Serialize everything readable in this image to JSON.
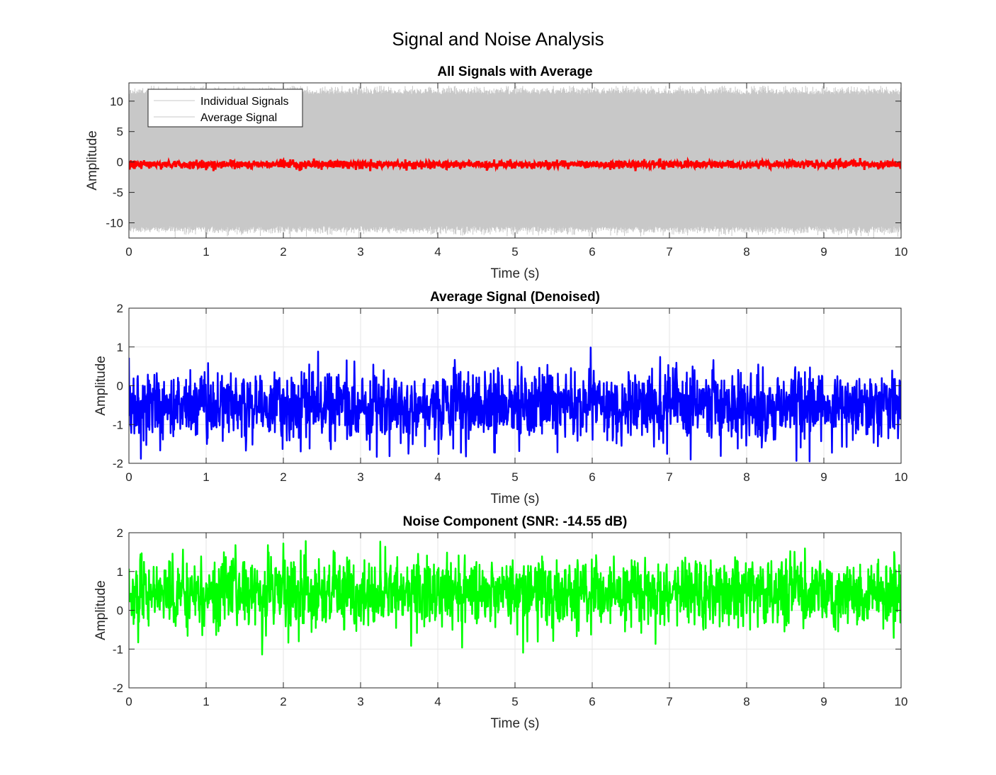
{
  "figure": {
    "title": "Signal and Noise Analysis"
  },
  "colors": {
    "individual": "#c8c8c8",
    "average": "#ff0000",
    "denoised": "#0000ff",
    "noise": "#00ff00",
    "axis": "#262626",
    "grid": "#e6e6e6"
  },
  "chart_data": [
    {
      "type": "line",
      "title": "All Signals with Average",
      "xlabel": "Time (s)",
      "ylabel": "Amplitude",
      "xlim": [
        0,
        10
      ],
      "ylim": [
        -12.5,
        13
      ],
      "xticks": [
        0,
        1,
        2,
        3,
        4,
        5,
        6,
        7,
        8,
        9,
        10
      ],
      "yticks": [
        -10,
        -5,
        0,
        5,
        10
      ],
      "grid": true,
      "legend": {
        "placement": "top-left",
        "entries": [
          "Individual Signals",
          "Average Signal"
        ]
      },
      "series": [
        {
          "name": "Individual Signals",
          "color": "#c8c8c8",
          "envelope": {
            "x": [
              0,
              10
            ],
            "mean": 0,
            "low": -10.5,
            "high": 11,
            "extreme_low": -12.5,
            "extreme_high": 12.5
          }
        },
        {
          "name": "Average Signal",
          "color": "#ff0000",
          "x_range": [
            0,
            10
          ],
          "approx_mean": -0.4,
          "approx_range": [
            -1.5,
            1
          ]
        }
      ]
    },
    {
      "type": "line",
      "title": "Average Signal (Denoised)",
      "xlabel": "Time (s)",
      "ylabel": "Amplitude",
      "xlim": [
        0,
        10
      ],
      "ylim": [
        -2,
        2
      ],
      "xticks": [
        0,
        1,
        2,
        3,
        4,
        5,
        6,
        7,
        8,
        9,
        10
      ],
      "yticks": [
        -2,
        -1,
        0,
        1,
        2
      ],
      "grid": true,
      "series": [
        {
          "color": "#0000ff",
          "x_range": [
            0,
            10
          ],
          "approx_mean": -0.5,
          "approx_range": [
            -2.05,
            1.2
          ],
          "line_width": 2.5
        }
      ]
    },
    {
      "type": "line",
      "title": "Noise Component (SNR: -14.55 dB)",
      "xlabel": "Time (s)",
      "ylabel": "Amplitude",
      "xlim": [
        0,
        10
      ],
      "ylim": [
        -2,
        2
      ],
      "xticks": [
        0,
        1,
        2,
        3,
        4,
        5,
        6,
        7,
        8,
        9,
        10
      ],
      "yticks": [
        -2,
        -1,
        0,
        1,
        2
      ],
      "grid": true,
      "series": [
        {
          "color": "#00ff00",
          "x_range": [
            0,
            10
          ],
          "approx_mean": 0.45,
          "approx_range": [
            -1.2,
            2.05
          ],
          "line_width": 2.5
        }
      ]
    }
  ]
}
